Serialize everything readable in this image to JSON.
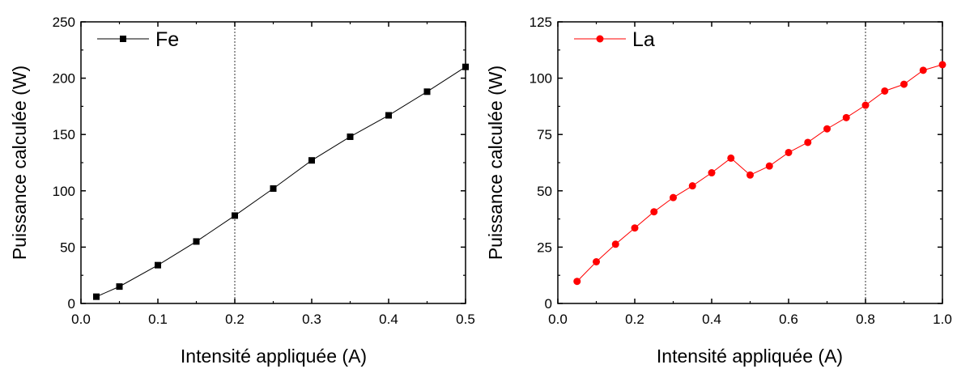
{
  "chart_data": [
    {
      "type": "line",
      "xlabel": "Intensité appliquée (A)",
      "ylabel": "Puissance calculée (W)",
      "xlim": [
        0,
        0.5
      ],
      "ylim": [
        0,
        250
      ],
      "xticks": [
        0.0,
        0.1,
        0.2,
        0.3,
        0.4,
        0.5
      ],
      "xtick_labels": [
        "0.0",
        "0.1",
        "0.2",
        "0.3",
        "0.4",
        "0.5"
      ],
      "yticks": [
        0,
        50,
        100,
        150,
        200,
        250
      ],
      "ytick_labels": [
        "0",
        "50",
        "100",
        "150",
        "200",
        "250"
      ],
      "grid": false,
      "legend_position": "top-left",
      "reference_line_x": 0.2,
      "series": [
        {
          "name": "Fe",
          "color": "#000000",
          "marker": "square",
          "x": [
            0.02,
            0.05,
            0.1,
            0.15,
            0.2,
            0.25,
            0.3,
            0.35,
            0.4,
            0.45,
            0.5
          ],
          "y": [
            6,
            15,
            34,
            55,
            78,
            102,
            127,
            148,
            167,
            188,
            210
          ]
        }
      ]
    },
    {
      "type": "line",
      "xlabel": "Intensité appliquée (A)",
      "ylabel": "Puissance calculée (W)",
      "xlim": [
        0,
        1.0
      ],
      "ylim": [
        0,
        125
      ],
      "xticks": [
        0.0,
        0.2,
        0.4,
        0.6,
        0.8,
        1.0
      ],
      "xtick_labels": [
        "0.0",
        "0.2",
        "0.4",
        "0.6",
        "0.8",
        "1.0"
      ],
      "yticks": [
        0,
        25,
        50,
        75,
        100,
        125
      ],
      "ytick_labels": [
        "0",
        "25",
        "50",
        "75",
        "100",
        "125"
      ],
      "grid": false,
      "legend_position": "top-left",
      "reference_line_x": 0.8,
      "series": [
        {
          "name": "La",
          "color": "#ff0000",
          "marker": "circle",
          "x": [
            0.05,
            0.1,
            0.15,
            0.2,
            0.25,
            0.3,
            0.35,
            0.4,
            0.45,
            0.5,
            0.55,
            0.6,
            0.65,
            0.7,
            0.75,
            0.8,
            0.85,
            0.9,
            0.95,
            1.0
          ],
          "y": [
            9.8,
            18.5,
            26.3,
            33.5,
            40.7,
            47,
            52.2,
            58,
            64.5,
            57,
            61,
            67,
            71.5,
            77.5,
            82.5,
            88,
            94.3,
            97.3,
            103.5,
            106
          ]
        }
      ]
    }
  ]
}
